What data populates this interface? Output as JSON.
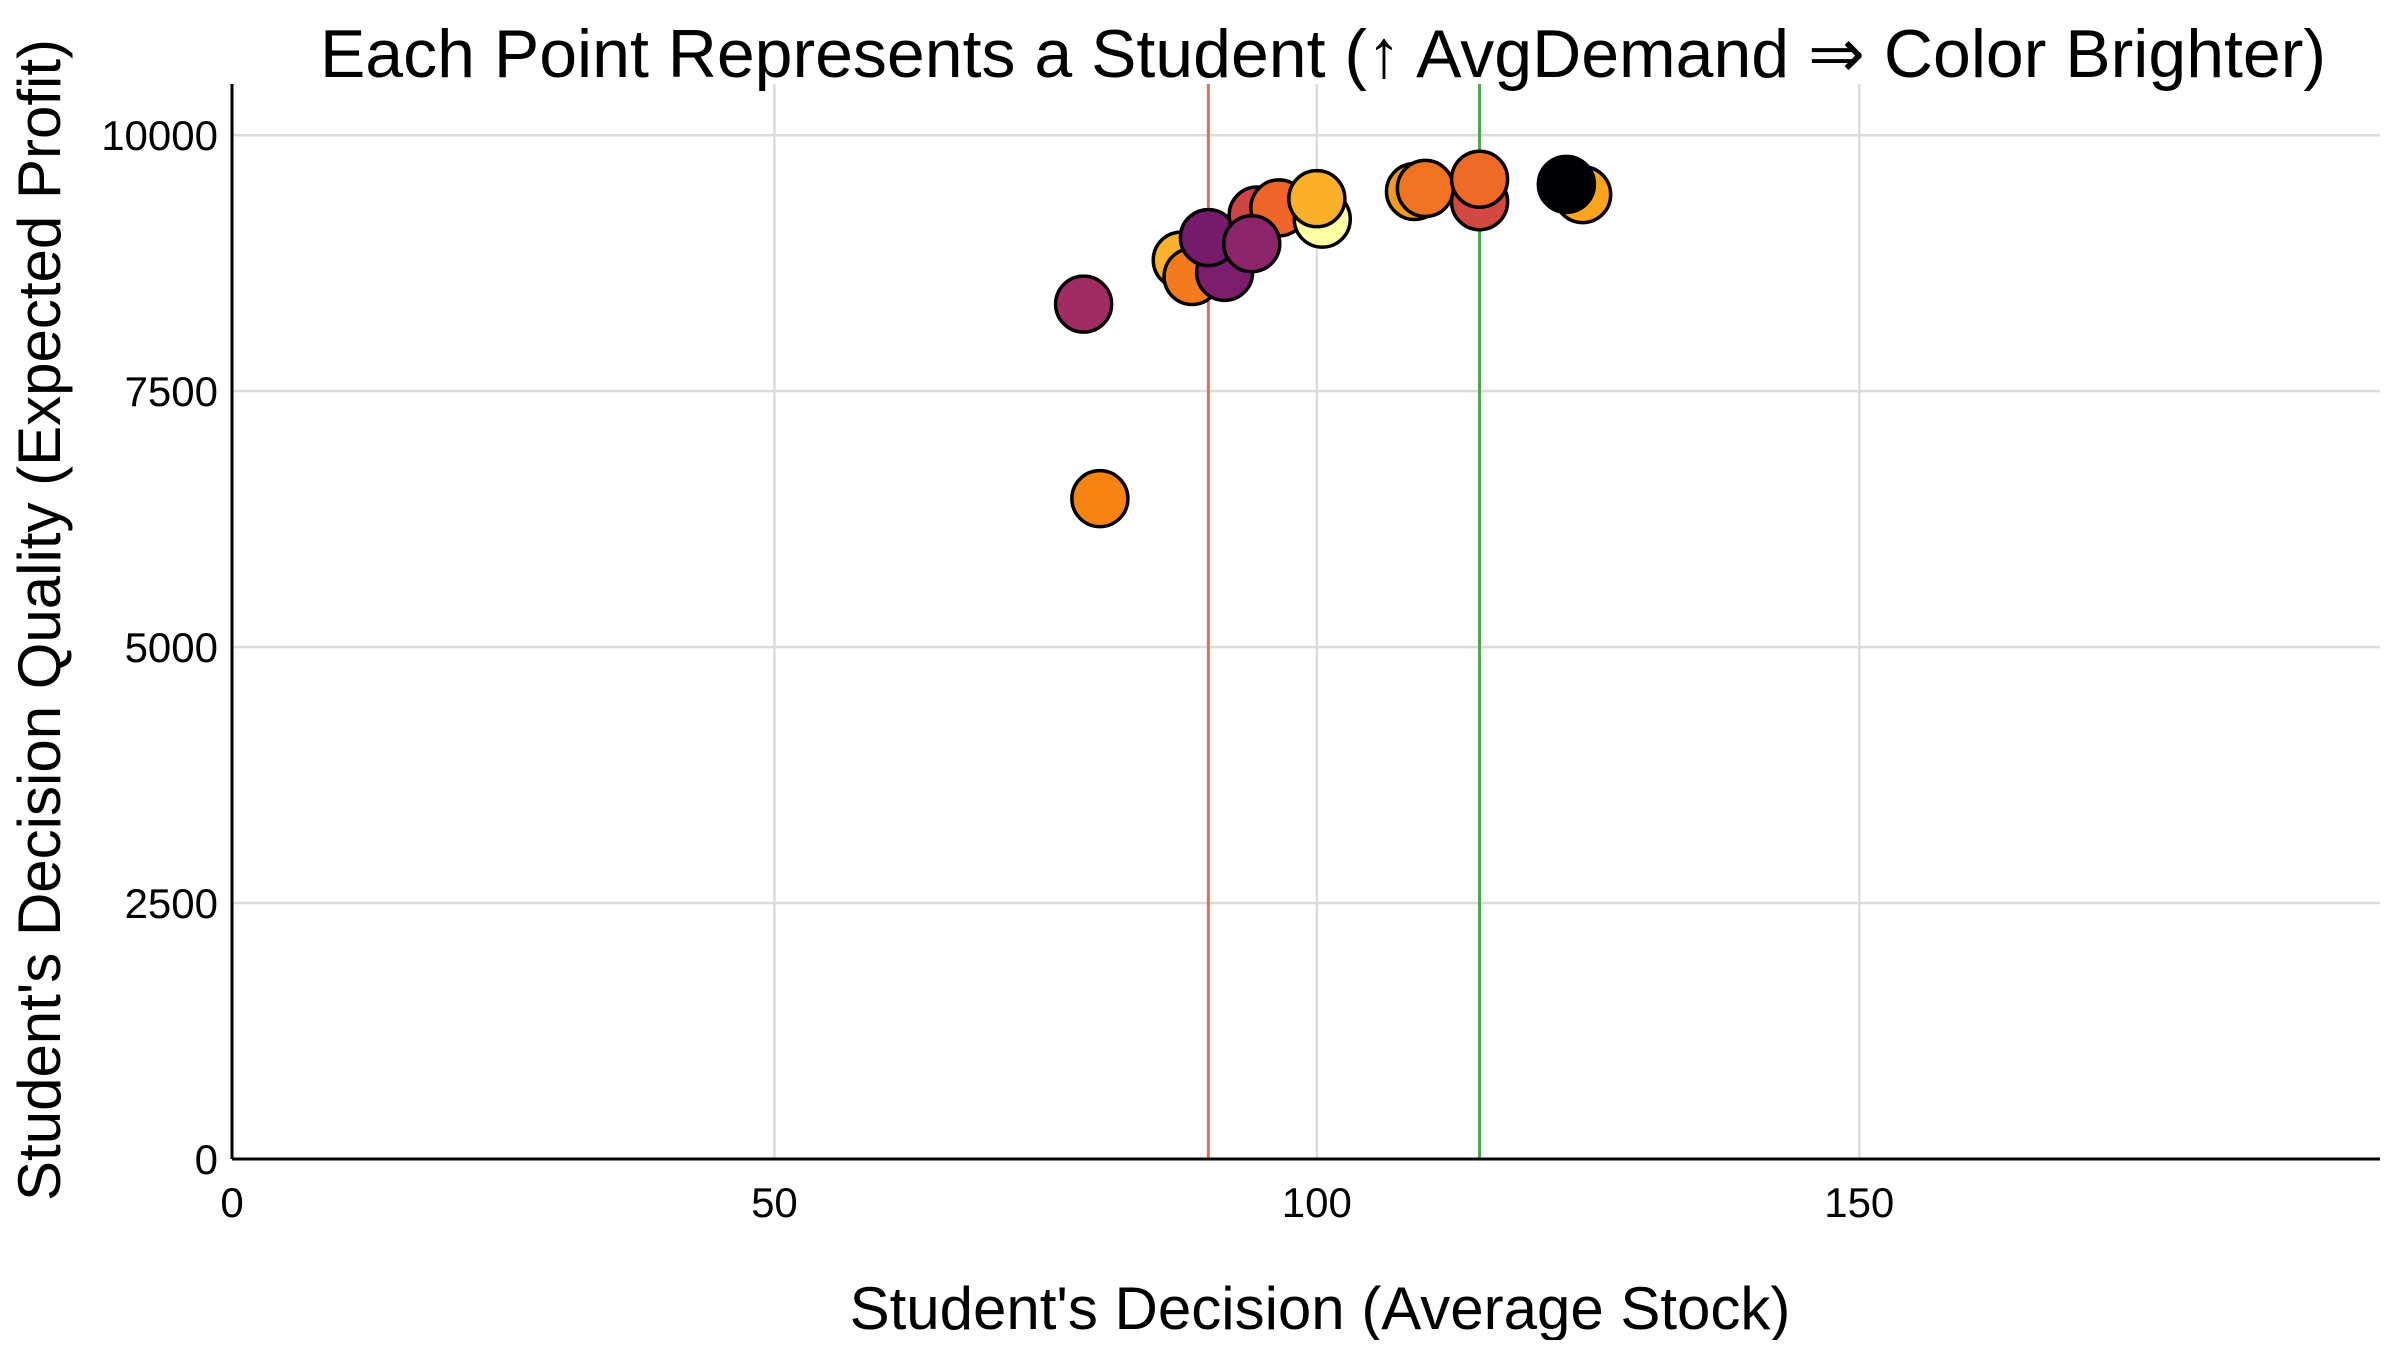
{
  "chart_data": {
    "type": "scatter",
    "title": "Each Point Represents a Student (↑ AvgDemand  ⇒ Color Brighter)",
    "xlabel": "Student's Decision (Average Stock)",
    "ylabel": "Student's Decision Quality (Expected Profit)",
    "xlim": [
      0,
      198
    ],
    "ylim": [
      0,
      10500
    ],
    "x_ticks": [
      0,
      50,
      100,
      150
    ],
    "x_tick_labels": [
      "0",
      "50",
      "100",
      "150"
    ],
    "y_ticks": [
      0,
      2500,
      5000,
      7500,
      10000
    ],
    "y_tick_labels": [
      "0",
      "2500",
      "5000",
      "7500",
      "10000"
    ],
    "grid": true,
    "colormap": "inferno",
    "reference_lines": [
      {
        "axis": "x",
        "value": 90,
        "color": "#e07050"
      },
      {
        "axis": "x",
        "value": 115,
        "color": "#4fa34f"
      }
    ],
    "points": [
      {
        "x": 78.5,
        "y": 8350,
        "color": "#a02c63"
      },
      {
        "x": 80,
        "y": 6450,
        "color": "#f78410"
      },
      {
        "x": 87.5,
        "y": 8780,
        "color": "#fbb32d"
      },
      {
        "x": 88.5,
        "y": 8620,
        "color": "#f37b1c"
      },
      {
        "x": 91.5,
        "y": 8660,
        "color": "#7b1d6c"
      },
      {
        "x": 90,
        "y": 9000,
        "color": "#761a6c"
      },
      {
        "x": 94.5,
        "y": 9220,
        "color": "#ce4444"
      },
      {
        "x": 96.5,
        "y": 9290,
        "color": "#ef6428"
      },
      {
        "x": 94,
        "y": 8940,
        "color": "#8c2469"
      },
      {
        "x": 100.5,
        "y": 9180,
        "color": "#fcffa4"
      },
      {
        "x": 100,
        "y": 9380,
        "color": "#fbb02a"
      },
      {
        "x": 109,
        "y": 9450,
        "color": "#f59a1e"
      },
      {
        "x": 110,
        "y": 9480,
        "color": "#f07321"
      },
      {
        "x": 115,
        "y": 9350,
        "color": "#d44842"
      },
      {
        "x": 115,
        "y": 9570,
        "color": "#ef6a27"
      },
      {
        "x": 124.5,
        "y": 9420,
        "color": "#fba41c"
      },
      {
        "x": 123,
        "y": 9520,
        "color": "#000004"
      }
    ]
  }
}
